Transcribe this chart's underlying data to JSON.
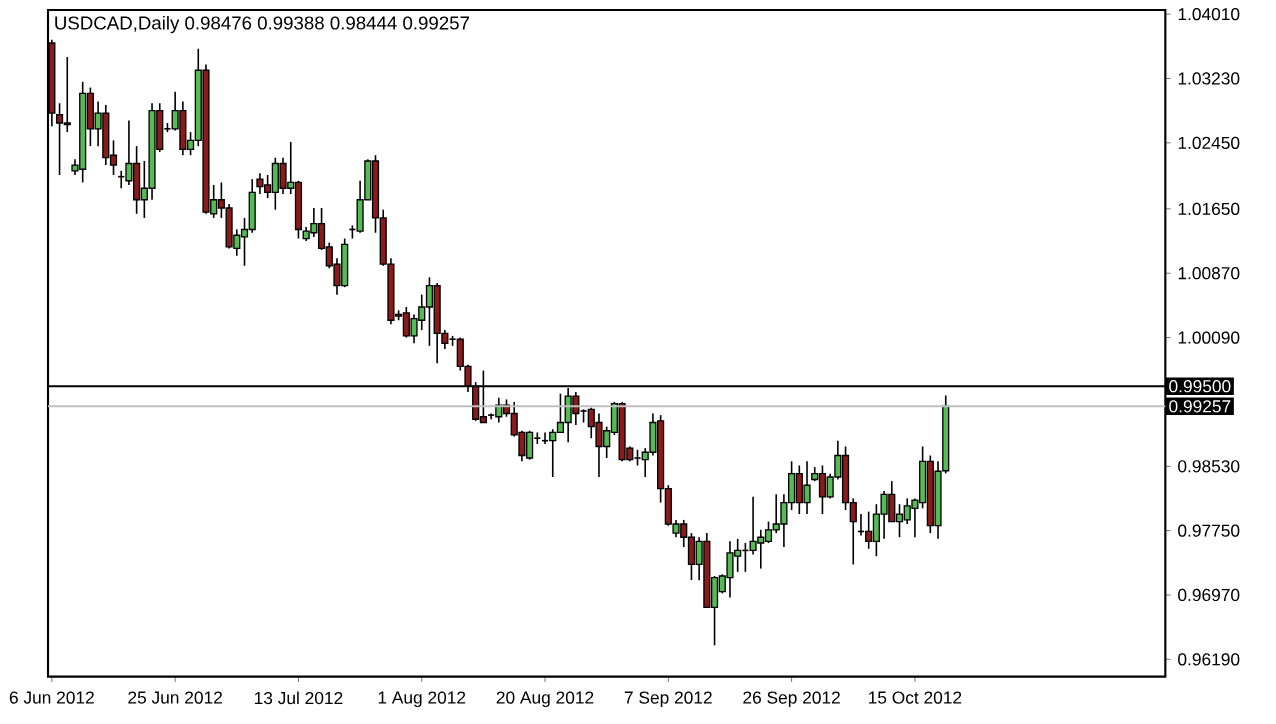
{
  "chart_data": {
    "type": "candlestick",
    "title": "USDCAD,Daily  0.98476 0.99388 0.98444 0.99257",
    "categories": [
      "6 Jun 2012",
      null,
      null,
      null,
      null,
      null,
      null,
      null,
      null,
      null,
      null,
      null,
      null,
      null,
      null,
      null,
      "25 Jun 2012",
      null,
      null,
      null,
      null,
      null,
      null,
      null,
      null,
      null,
      null,
      null,
      null,
      null,
      null,
      null,
      "13 Jul 2012",
      null,
      null,
      null,
      null,
      null,
      null,
      null,
      null,
      null,
      null,
      null,
      null,
      null,
      null,
      null,
      "1 Aug 2012",
      null,
      null,
      null,
      null,
      null,
      null,
      null,
      null,
      null,
      null,
      null,
      null,
      null,
      null,
      null,
      "20 Aug 2012",
      null,
      null,
      null,
      null,
      null,
      null,
      null,
      null,
      null,
      null,
      null,
      null,
      null,
      null,
      null,
      "7 Sep 2012",
      null,
      null,
      null,
      null,
      null,
      null,
      null,
      null,
      null,
      null,
      null,
      null,
      null,
      null,
      null,
      "26 Sep 2012",
      null,
      null,
      null,
      null,
      null,
      null,
      null,
      null,
      null,
      null,
      null,
      null,
      null,
      null,
      null,
      "15 Oct 2012",
      null,
      null,
      null,
      null,
      null,
      null,
      null,
      null,
      null,
      null,
      null,
      null,
      null,
      null,
      null,
      null,
      null,
      null,
      null,
      null,
      null,
      null,
      null,
      null,
      null,
      null,
      null,
      null,
      null,
      null,
      null,
      null
    ],
    "ohlc": [
      [
        1.0366,
        1.037,
        1.0265,
        1.0281
      ],
      [
        1.0279,
        1.0293,
        1.0206,
        1.0269
      ],
      [
        1.0269,
        1.0349,
        1.0258,
        1.0267
      ],
      [
        1.0211,
        1.0225,
        1.0206,
        1.0218
      ],
      [
        1.0213,
        1.0319,
        1.0197,
        1.0305
      ],
      [
        1.0305,
        1.0312,
        1.0241,
        1.0262
      ],
      [
        1.0262,
        1.0295,
        1.0241,
        1.0281
      ],
      [
        1.0281,
        1.0291,
        1.0218,
        1.0227
      ],
      [
        1.023,
        1.0248,
        1.0206,
        1.0218
      ],
      [
        1.0204,
        1.0211,
        1.019,
        1.0204
      ],
      [
        1.0199,
        1.0272,
        1.0194,
        1.022
      ],
      [
        1.022,
        1.0241,
        1.0159,
        1.0176
      ],
      [
        1.0176,
        1.0223,
        1.0154,
        1.019
      ],
      [
        1.019,
        1.0293,
        1.0176,
        1.0284
      ],
      [
        1.0284,
        1.0293,
        1.0234,
        1.0237
      ],
      [
        1.0262,
        1.0269,
        1.0258,
        1.0262
      ],
      [
        1.0262,
        1.0307,
        1.026,
        1.0284
      ],
      [
        1.0284,
        1.0295,
        1.023,
        1.0237
      ],
      [
        1.0237,
        1.0258,
        1.023,
        1.0248
      ],
      [
        1.0248,
        1.0359,
        1.0241,
        1.0333
      ],
      [
        1.0333,
        1.034,
        1.0159,
        1.0161
      ],
      [
        1.0159,
        1.0194,
        1.0154,
        1.0176
      ],
      [
        1.0176,
        1.0197,
        1.0154,
        1.0166
      ],
      [
        1.0166,
        1.0171,
        1.0117,
        1.0119
      ],
      [
        1.0117,
        1.014,
        1.0108,
        1.0133
      ],
      [
        1.0131,
        1.0154,
        1.0096,
        1.014
      ],
      [
        1.014,
        1.0201,
        1.0136,
        1.0185
      ],
      [
        1.0201,
        1.0208,
        1.0183,
        1.0192
      ],
      [
        1.0194,
        1.0206,
        1.0178,
        1.0185
      ],
      [
        1.0185,
        1.0227,
        1.0164,
        1.022
      ],
      [
        1.022,
        1.0227,
        1.0183,
        1.019
      ],
      [
        1.019,
        1.0246,
        1.0183,
        1.0197
      ],
      [
        1.0197,
        1.0199,
        1.0129,
        1.014
      ],
      [
        1.0129,
        1.0143,
        1.0126,
        1.0138
      ],
      [
        1.0136,
        1.0166,
        1.0131,
        1.0147
      ],
      [
        1.0147,
        1.0166,
        1.0115,
        1.0117
      ],
      [
        1.0119,
        1.0124,
        1.0093,
        1.0096
      ],
      [
        1.0098,
        1.0105,
        1.0061,
        1.0072
      ],
      [
        1.0072,
        1.0129,
        1.007,
        1.0122
      ],
      [
        1.014,
        1.0145,
        1.0129,
        1.014
      ],
      [
        1.0138,
        1.0199,
        1.0136,
        1.0176
      ],
      [
        1.0176,
        1.0225,
        1.0176,
        1.0223
      ],
      [
        1.0223,
        1.023,
        1.0136,
        1.0154
      ],
      [
        1.0154,
        1.0164,
        1.0096,
        1.0098
      ],
      [
        1.0098,
        1.0105,
        1.0025,
        1.003
      ],
      [
        1.0037,
        1.0042,
        1.003,
        1.0035
      ],
      [
        1.0039,
        1.0046,
        1.0009,
        1.0011
      ],
      [
        1.0011,
        1.0037,
        1.0002,
        1.0032
      ],
      [
        1.003,
        1.0061,
        1.0018,
        1.0046
      ],
      [
        1.0046,
        1.0082,
        0.9999,
        1.0072
      ],
      [
        1.0072,
        1.0075,
        0.9978,
        1.0014
      ],
      [
        1.0014,
        1.0018,
        0.9995,
        1.0002
      ],
      [
        1.0007,
        1.0011,
        0.9999,
        1.0007
      ],
      [
        1.0007,
        1.0009,
        0.9969,
        0.9974
      ],
      [
        0.9974,
        0.9976,
        0.9943,
        0.995
      ],
      [
        0.995,
        0.9955,
        0.9908,
        0.991
      ],
      [
        0.9913,
        0.9969,
        0.9906,
        0.9906
      ],
      [
        0.9915,
        0.9917,
        0.991,
        0.9915
      ],
      [
        0.9913,
        0.9936,
        0.9906,
        0.9927
      ],
      [
        0.9927,
        0.9934,
        0.9913,
        0.9917
      ],
      [
        0.9917,
        0.9931,
        0.9889,
        0.9891
      ],
      [
        0.9894,
        0.9896,
        0.9859,
        0.9866
      ],
      [
        0.9863,
        0.9896,
        0.9861,
        0.9894
      ],
      [
        0.9887,
        0.9894,
        0.988,
        0.9887
      ],
      [
        0.9884,
        0.9894,
        0.988,
        0.9884
      ],
      [
        0.9884,
        0.9898,
        0.984,
        0.9894
      ],
      [
        0.9894,
        0.9941,
        0.9894,
        0.9906
      ],
      [
        0.9906,
        0.9948,
        0.9882,
        0.9938
      ],
      [
        0.9938,
        0.9943,
        0.9903,
        0.9917
      ],
      [
        0.992,
        0.9922,
        0.9906,
        0.992
      ],
      [
        0.9922,
        0.9924,
        0.9887,
        0.9901
      ],
      [
        0.9906,
        0.9917,
        0.984,
        0.9877
      ],
      [
        0.9877,
        0.9901,
        0.9863,
        0.9896
      ],
      [
        0.9894,
        0.9931,
        0.9891,
        0.9929
      ],
      [
        0.9929,
        0.9931,
        0.9859,
        0.9861
      ],
      [
        0.9875,
        0.9877,
        0.9859,
        0.9861
      ],
      [
        0.9863,
        0.9873,
        0.9854,
        0.9863
      ],
      [
        0.9861,
        0.9875,
        0.984,
        0.987
      ],
      [
        0.987,
        0.9917,
        0.9866,
        0.9906
      ],
      [
        0.9908,
        0.9915,
        0.9809,
        0.9826
      ],
      [
        0.9826,
        0.983,
        0.9781,
        0.9783
      ],
      [
        0.9772,
        0.9788,
        0.9767,
        0.9783
      ],
      [
        0.9783,
        0.9788,
        0.9755,
        0.9767
      ],
      [
        0.9767,
        0.9772,
        0.9715,
        0.9734
      ],
      [
        0.9734,
        0.9767,
        0.9715,
        0.9762
      ],
      [
        0.9762,
        0.9772,
        0.9682,
        0.9682
      ],
      [
        0.9682,
        0.972,
        0.9636,
        0.9718
      ],
      [
        0.9701,
        0.9722,
        0.9699,
        0.972
      ],
      [
        0.9718,
        0.9762,
        0.9694,
        0.9748
      ],
      [
        0.9744,
        0.9765,
        0.9725,
        0.9751
      ],
      [
        0.9751,
        0.976,
        0.9725,
        0.9751
      ],
      [
        0.9751,
        0.9816,
        0.9746,
        0.9762
      ],
      [
        0.976,
        0.9776,
        0.9729,
        0.9767
      ],
      [
        0.9762,
        0.9786,
        0.976,
        0.9776
      ],
      [
        0.9776,
        0.9819,
        0.9772,
        0.9783
      ],
      [
        0.9783,
        0.9819,
        0.9755,
        0.9809
      ],
      [
        0.9809,
        0.9859,
        0.98,
        0.9844
      ],
      [
        0.9844,
        0.9854,
        0.9795,
        0.9809
      ],
      [
        0.9809,
        0.9859,
        0.9795,
        0.983
      ],
      [
        0.9837,
        0.9852,
        0.9835,
        0.9844
      ],
      [
        0.9844,
        0.9854,
        0.9795,
        0.9816
      ],
      [
        0.9816,
        0.9844,
        0.9814,
        0.984
      ],
      [
        0.984,
        0.9884,
        0.9837,
        0.9866
      ],
      [
        0.9866,
        0.9877,
        0.98,
        0.9809
      ],
      [
        0.9809,
        0.9814,
        0.9734,
        0.9786
      ],
      [
        0.9774,
        0.9795,
        0.9769,
        0.9774
      ],
      [
        0.9774,
        0.9798,
        0.9753,
        0.9762
      ],
      [
        0.9762,
        0.9807,
        0.9744,
        0.9795
      ],
      [
        0.9795,
        0.9823,
        0.9765,
        0.9819
      ],
      [
        0.9819,
        0.9835,
        0.9786,
        0.9786
      ],
      [
        0.9786,
        0.9807,
        0.9767,
        0.9795
      ],
      [
        0.9788,
        0.9814,
        0.9783,
        0.9805
      ],
      [
        0.9802,
        0.9814,
        0.9767,
        0.9812
      ],
      [
        0.9809,
        0.9877,
        0.9802,
        0.9859
      ],
      [
        0.9859,
        0.9866,
        0.9772,
        0.9781
      ],
      [
        0.9781,
        0.9859,
        0.9765,
        0.9847
      ],
      [
        0.98476,
        0.99388,
        0.98444,
        0.99257
      ],
      null,
      null,
      null,
      null,
      null,
      null,
      null,
      null,
      null,
      null,
      null,
      null,
      null,
      null,
      null,
      null,
      null,
      null,
      null,
      null,
      null,
      null,
      null,
      null,
      null,
      null,
      null,
      null
    ],
    "colors": [
      "#8b1a1a",
      "#8b1a1a",
      "#8b1a1a",
      "#55bb55",
      "#55bb55",
      "#8b1a1a",
      "#55bb55",
      "#8b1a1a",
      "#8b1a1a",
      "#000000",
      "#55bb55",
      "#8b1a1a",
      "#55bb55",
      "#55bb55",
      "#8b1a1a",
      "#000000",
      "#55bb55",
      "#8b1a1a",
      "#55bb55",
      "#55bb55",
      "#8b1a1a",
      "#55bb55",
      "#8b1a1a",
      "#8b1a1a",
      "#55bb55",
      "#55bb55",
      "#55bb55",
      "#8b1a1a",
      "#8b1a1a",
      "#55bb55",
      "#8b1a1a",
      "#55bb55",
      "#8b1a1a",
      "#55bb55",
      "#55bb55",
      "#8b1a1a",
      "#8b1a1a",
      "#8b1a1a",
      "#55bb55",
      "#000000",
      "#55bb55",
      "#55bb55",
      "#8b1a1a",
      "#8b1a1a",
      "#8b1a1a",
      "#8b1a1a",
      "#8b1a1a",
      "#55bb55",
      "#55bb55",
      "#55bb55",
      "#8b1a1a",
      "#8b1a1a",
      "#000000",
      "#8b1a1a",
      "#8b1a1a",
      "#8b1a1a",
      "#8b1a1a",
      "#000000",
      "#55bb55",
      "#8b1a1a",
      "#8b1a1a",
      "#8b1a1a",
      "#55bb55",
      "#000000",
      "#000000",
      "#55bb55",
      "#55bb55",
      "#55bb55",
      "#8b1a1a",
      "#000000",
      "#8b1a1a",
      "#8b1a1a",
      "#55bb55",
      "#55bb55",
      "#8b1a1a",
      "#8b1a1a",
      "#000000",
      "#55bb55",
      "#55bb55",
      "#8b1a1a",
      "#8b1a1a",
      "#55bb55",
      "#8b1a1a",
      "#8b1a1a",
      "#55bb55",
      "#8b1a1a",
      "#55bb55",
      "#55bb55",
      "#55bb55",
      "#55bb55",
      "#000000",
      "#55bb55",
      "#55bb55",
      "#55bb55",
      "#55bb55",
      "#55bb55",
      "#55bb55",
      "#8b1a1a",
      "#55bb55",
      "#55bb55",
      "#8b1a1a",
      "#55bb55",
      "#55bb55",
      "#8b1a1a",
      "#8b1a1a",
      "#000000",
      "#8b1a1a",
      "#55bb55",
      "#55bb55",
      "#8b1a1a",
      "#55bb55",
      "#55bb55",
      "#55bb55",
      "#55bb55",
      "#8b1a1a",
      "#55bb55",
      "#55bb55",
      null,
      null,
      null,
      null,
      null,
      null,
      null,
      null,
      null,
      null,
      null,
      null,
      null,
      null,
      null,
      null,
      null,
      null,
      null,
      null,
      null,
      null,
      null,
      null,
      null,
      null,
      null,
      null
    ],
    "ylim": [
      0.9598,
      1.0406
    ],
    "yticks": [
      {
        "value": 1.0401,
        "label": "1.04010"
      },
      {
        "value": 1.0323,
        "label": "1.03230"
      },
      {
        "value": 1.0245,
        "label": "1.02450"
      },
      {
        "value": 1.0165,
        "label": "1.01650"
      },
      {
        "value": 1.0087,
        "label": "1.00870"
      },
      {
        "value": 1.0009,
        "label": "1.00090"
      },
      {
        "value": 0.9853,
        "label": "0.98530"
      },
      {
        "value": 0.9775,
        "label": "0.97750"
      },
      {
        "value": 0.9697,
        "label": "0.96970"
      },
      {
        "value": 0.9619,
        "label": "0.96190"
      }
    ],
    "ref_lines": [
      {
        "axis": "y",
        "value": 0.995,
        "label": "0.99500",
        "color": "#000000"
      },
      {
        "axis": "y",
        "value": 0.99257,
        "label": "0.99257",
        "color": "#c0c0c0"
      }
    ]
  }
}
